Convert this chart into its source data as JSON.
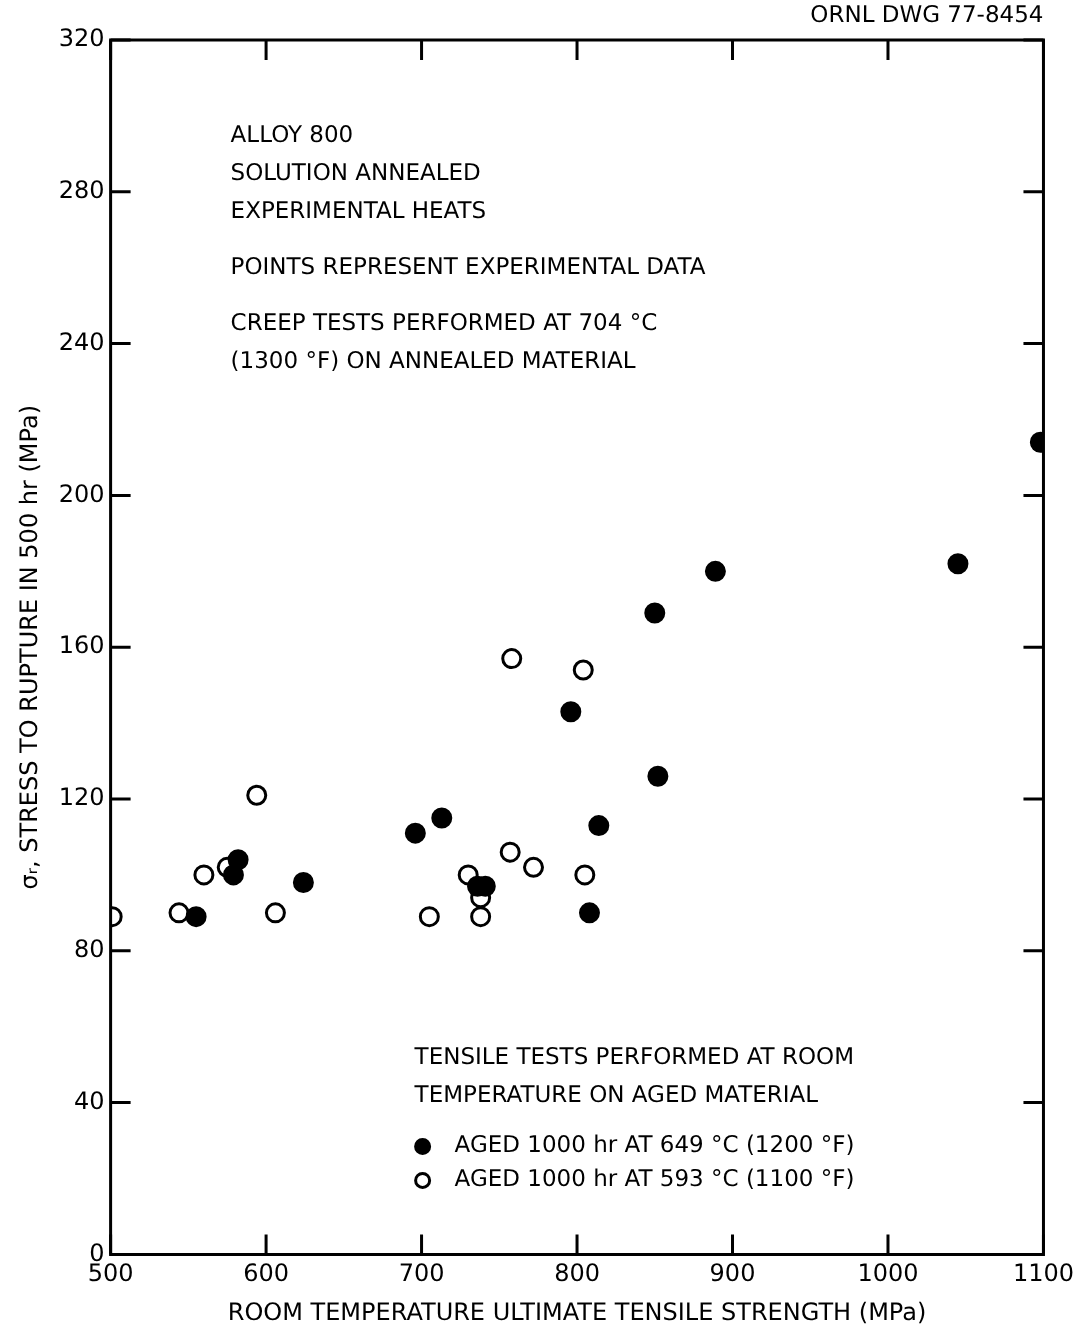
{
  "chart_data": {
    "type": "scatter",
    "xlabel": "ROOM TEMPERATURE ULTIMATE TENSILE STRENGTH (MPa)",
    "ylabel": "σᵣ, STRESS TO RUPTURE IN 500 hr (MPa)",
    "legend_title": "TENSILE TESTS PERFORMED AT ROOM TEMPERATURE ON AGED MATERIAL",
    "annotations": [
      "ORNL DWG 77-8454",
      "ALLOY 800",
      "SOLUTION ANNEALED",
      "EXPERIMENTAL HEATS",
      "POINTS REPRESENT EXPERIMENTAL DATA",
      "CREEP TESTS PERFORMED AT 704 °C (1300 °F) ON ANNEALED MATERIAL"
    ],
    "xlim": [
      500,
      1100
    ],
    "xticks": [
      500,
      600,
      700,
      800,
      900,
      1000,
      1100
    ],
    "ylim": [
      0,
      320
    ],
    "yticks": [
      0,
      40,
      80,
      120,
      160,
      200,
      240,
      280,
      320
    ],
    "grid": false,
    "legend": "bottom right",
    "marker": "circle",
    "series": [
      {
        "name": "AGED 1000 hr AT 649 °C (1200 °F)",
        "color": "#000000",
        "x": [
          555,
          579,
          582,
          624,
          696,
          713,
          736,
          741,
          808,
          814,
          852,
          796,
          850,
          889,
          1045,
          1098
        ],
        "values": [
          89,
          100,
          104,
          98,
          111,
          115,
          97,
          97,
          90,
          113,
          126,
          143,
          169,
          180,
          182,
          214
        ]
      },
      {
        "name": "AGED 1000 hr AT 593 °C (1100 °F)",
        "color": "#ffffff",
        "x": [
          501,
          544,
          560,
          575,
          594,
          606,
          705,
          730,
          738,
          738,
          757,
          772,
          805,
          758,
          804
        ],
        "values": [
          89,
          90,
          100,
          102,
          121,
          90,
          89,
          100,
          94,
          89,
          106,
          102,
          100,
          157,
          154
        ]
      }
    ]
  }
}
